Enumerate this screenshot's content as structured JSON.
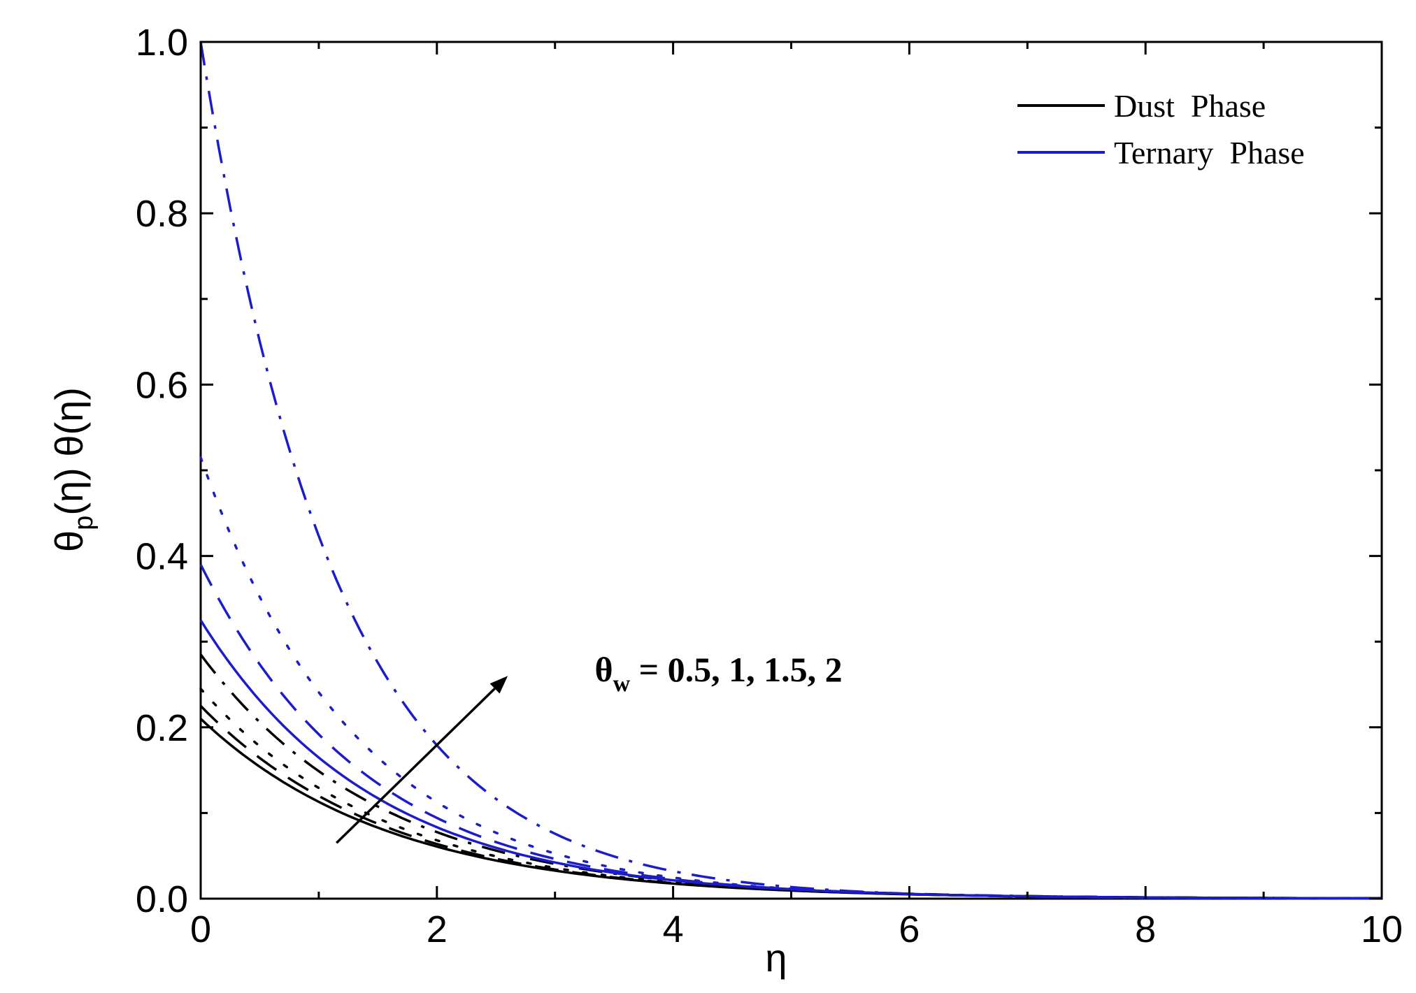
{
  "chart_data": {
    "type": "line",
    "xlabel": "η",
    "ylabel": {
      "main": "θ",
      "sub": "p",
      "rest": "(η) θ(η)"
    },
    "xlim": [
      0,
      10
    ],
    "ylim": [
      0,
      1.0
    ],
    "x_ticks": [
      0,
      2,
      4,
      6,
      8,
      10
    ],
    "y_ticks": [
      0.0,
      0.2,
      0.4,
      0.6,
      0.8,
      1.0
    ],
    "x_tick_labels": [
      "0",
      "2",
      "4",
      "6",
      "8",
      "10"
    ],
    "y_tick_labels": [
      "0.0",
      "0.2",
      "0.4",
      "0.6",
      "0.8",
      "1.0"
    ],
    "legend_position": "top-right",
    "legend": [
      {
        "label": "Dust  Phase",
        "color": "#000000"
      },
      {
        "label": "Ternary  Phase",
        "color": "#1c1cc8"
      }
    ],
    "annotation": {
      "main": "θ",
      "sub": "w",
      "rest": " = 0.5, 1, 1.5, 2",
      "arrow_from": [
        1.15,
        0.065
      ],
      "arrow_to": [
        2.6,
        0.26
      ]
    },
    "series": [
      {
        "group": "dust",
        "theta_w": 0.5,
        "dash": "solid",
        "color": "#000000",
        "y0": 0.21,
        "decay": 0.62
      },
      {
        "group": "dust",
        "theta_w": 1,
        "dash": "dash",
        "color": "#000000",
        "y0": 0.225,
        "decay": 0.63
      },
      {
        "group": "dust",
        "theta_w": 1.5,
        "dash": "dot",
        "color": "#000000",
        "y0": 0.245,
        "decay": 0.64
      },
      {
        "group": "dust",
        "theta_w": 2,
        "dash": "dashdot",
        "color": "#000000",
        "y0": 0.285,
        "decay": 0.65
      },
      {
        "group": "ternary",
        "theta_w": 0.5,
        "dash": "solid",
        "color": "#1c1cc8",
        "y0": 0.325,
        "decay": 0.68
      },
      {
        "group": "ternary",
        "theta_w": 1,
        "dash": "dash",
        "color": "#1c1cc8",
        "y0": 0.39,
        "decay": 0.71
      },
      {
        "group": "ternary",
        "theta_w": 1.5,
        "dash": "dot",
        "color": "#1c1cc8",
        "y0": 0.515,
        "decay": 0.76
      },
      {
        "group": "ternary",
        "theta_w": 2,
        "dash": "dashdot",
        "color": "#1c1cc8",
        "y0": 1.0,
        "decay": 0.86
      }
    ]
  }
}
